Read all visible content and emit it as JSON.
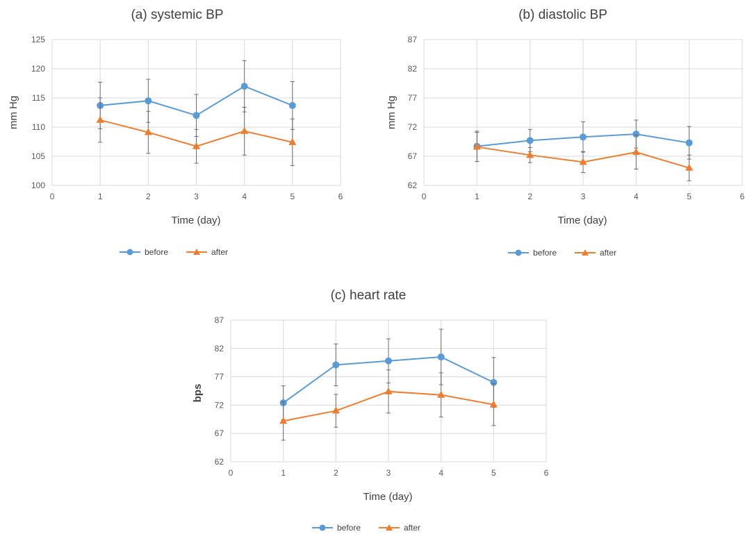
{
  "colors": {
    "before": "#5B9BD5",
    "after": "#ED7D31",
    "grid": "#D9D9D9",
    "error_bar": "#6B6B6B"
  },
  "legend": {
    "before": "before",
    "after": "after"
  },
  "chart_data": [
    {
      "id": "a",
      "type": "line",
      "title": "(a) systemic BP",
      "xlabel": "Time (day)",
      "ylabel": "mm Hg",
      "xlim": [
        0,
        6
      ],
      "ylim": [
        100,
        125
      ],
      "x_ticks": [
        0,
        1,
        2,
        3,
        4,
        5,
        6
      ],
      "y_ticks": [
        100,
        105,
        110,
        115,
        120,
        125
      ],
      "grid": true,
      "legend_position": "bottom",
      "x": [
        1,
        2,
        3,
        4,
        5
      ],
      "series": [
        {
          "name": "before",
          "values": [
            113.7,
            114.5,
            112.0,
            117.0,
            113.7
          ],
          "error": [
            4.0,
            3.7,
            3.6,
            4.4,
            4.1
          ]
        },
        {
          "name": "after",
          "values": [
            111.2,
            109.1,
            106.7,
            109.3,
            107.4
          ],
          "error": [
            3.8,
            3.6,
            2.9,
            4.1,
            4.0
          ]
        }
      ]
    },
    {
      "id": "b",
      "type": "line",
      "title": "(b) diastolic BP",
      "xlabel": "Time (day)",
      "ylabel": "mm Hg",
      "xlim": [
        0,
        6
      ],
      "ylim": [
        62,
        87
      ],
      "x_ticks": [
        0,
        1,
        2,
        3,
        4,
        5,
        6
      ],
      "y_ticks": [
        62,
        67,
        72,
        77,
        82,
        87
      ],
      "grid": true,
      "legend_position": "bottom",
      "x": [
        1,
        2,
        3,
        4,
        5
      ],
      "series": [
        {
          "name": "before",
          "values": [
            68.7,
            69.7,
            70.3,
            70.8,
            69.3
          ],
          "error": [
            2.6,
            1.9,
            2.6,
            2.4,
            2.8
          ]
        },
        {
          "name": "after",
          "values": [
            68.6,
            67.2,
            66.0,
            67.7,
            65.0
          ],
          "error": [
            2.5,
            1.3,
            1.8,
            2.9,
            2.2
          ]
        }
      ]
    },
    {
      "id": "c",
      "type": "line",
      "title": "(c) heart rate",
      "xlabel": "Time (day)",
      "ylabel": "bps",
      "xlim": [
        0,
        6
      ],
      "ylim": [
        62,
        87
      ],
      "x_ticks": [
        0,
        1,
        2,
        3,
        4,
        5,
        6
      ],
      "y_ticks": [
        62,
        67,
        72,
        77,
        82,
        87
      ],
      "grid": true,
      "legend_position": "bottom",
      "x": [
        1,
        2,
        3,
        4,
        5
      ],
      "series": [
        {
          "name": "before",
          "values": [
            72.4,
            79.1,
            79.8,
            80.5,
            76.0
          ],
          "error": [
            3.0,
            3.7,
            3.9,
            4.9,
            4.4
          ]
        },
        {
          "name": "after",
          "values": [
            69.2,
            71.0,
            74.4,
            73.8,
            72.1
          ],
          "error": [
            3.4,
            2.9,
            3.8,
            3.9,
            3.7
          ]
        }
      ]
    }
  ]
}
